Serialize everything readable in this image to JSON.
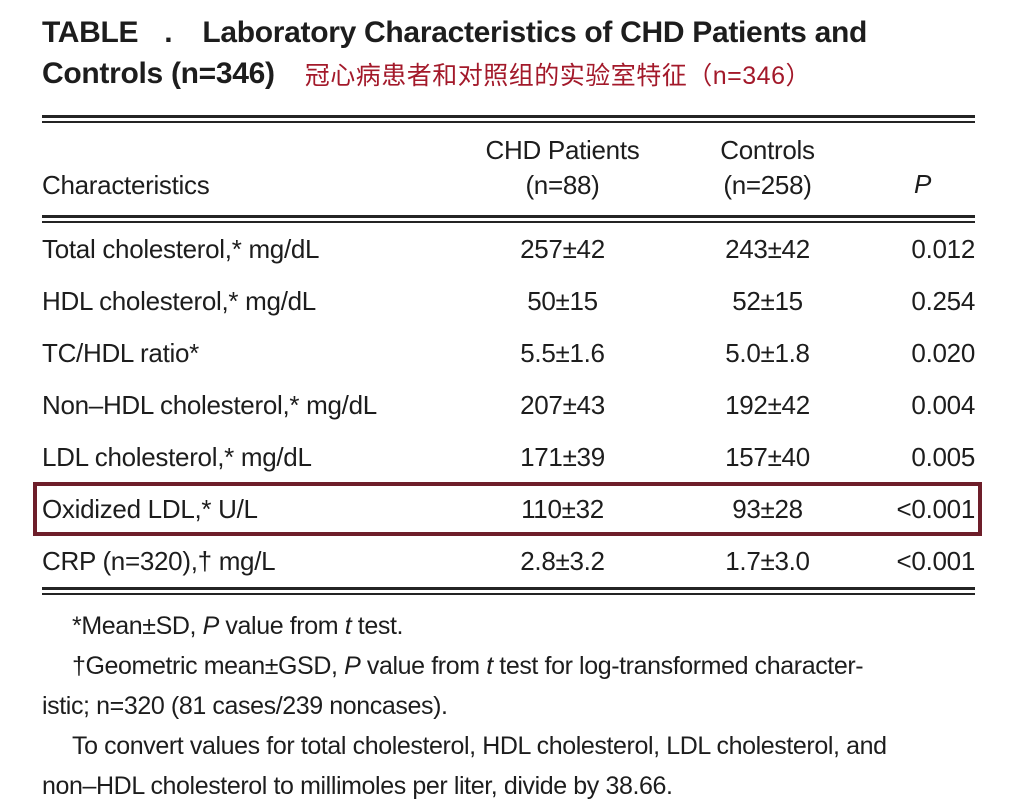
{
  "colors": {
    "text": "#1d1d1d",
    "rule": "#242424",
    "annotation_red": "#a3192a",
    "highlight_box": "#6e1e2a"
  },
  "title": {
    "word": "TABLE",
    "dot": ".",
    "line1_rest": "Laboratory Characteristics of CHD Patients and",
    "line2": "Controls (n=346)",
    "annotation_cn": "冠心病患者和对照组的实验室特征（n=346）"
  },
  "table": {
    "header": {
      "characteristics": "Characteristics",
      "chd_line1": "CHD Patients",
      "chd_line2": "(n=88)",
      "controls_line1": "Controls",
      "controls_line2": "(n=258)",
      "p": "P"
    },
    "rows": [
      {
        "label": "Total cholesterol,* mg/dL",
        "chd": "257±42",
        "controls": "243±42",
        "p": "0.012",
        "highlighted": false
      },
      {
        "label": "HDL cholesterol,* mg/dL",
        "chd": "50±15",
        "controls": "52±15",
        "p": "0.254",
        "highlighted": false
      },
      {
        "label": "TC/HDL ratio*",
        "chd": "5.5±1.6",
        "controls": "5.0±1.8",
        "p": "0.020",
        "highlighted": false
      },
      {
        "label": "Non–HDL cholesterol,* mg/dL",
        "chd": "207±43",
        "controls": "192±42",
        "p": "0.004",
        "highlighted": false
      },
      {
        "label": "LDL cholesterol,* mg/dL",
        "chd": "171±39",
        "controls": "157±40",
        "p": "0.005",
        "highlighted": false
      },
      {
        "label": "Oxidized LDL,* U/L",
        "chd": "110±32",
        "controls": "93±28",
        "p": "<0.001",
        "highlighted": true
      },
      {
        "label": "CRP (n=320),† mg/L",
        "chd": "2.8±3.2",
        "controls": "1.7±3.0",
        "p": "<0.001",
        "highlighted": false
      }
    ]
  },
  "footnotes": {
    "f1": {
      "parts": [
        "*Mean±SD, ",
        "P",
        " value from ",
        "t",
        " test."
      ]
    },
    "f2": {
      "parts": [
        "†Geometric mean±GSD, ",
        "P",
        " value from ",
        "t",
        " test for log-transformed character-",
        "istic; n=320 (81 cases/239 noncases)."
      ]
    },
    "f3": {
      "line1": "To convert values for total cholesterol, HDL cholesterol, LDL cholesterol, and",
      "line2": "non–HDL cholesterol to millimoles per liter, divide by 38.66."
    }
  }
}
